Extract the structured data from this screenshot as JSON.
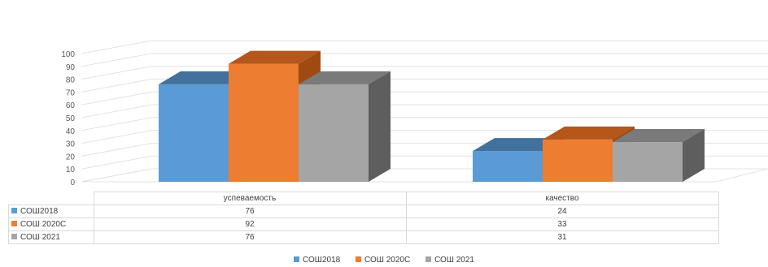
{
  "chart_data": {
    "type": "bar",
    "style": "3d-clustered-column",
    "categories": [
      "успеваемость",
      "качество"
    ],
    "series": [
      {
        "name": "СОШ2018",
        "values": [
          76,
          24
        ],
        "color": "#5b9bd5",
        "top": "#41719c",
        "side": "#2e5f8d"
      },
      {
        "name": "СОШ 2020С",
        "values": [
          92,
          33
        ],
        "color": "#ed7d31",
        "top": "#b5561b",
        "side": "#a04a12"
      },
      {
        "name": "СОШ 2021",
        "values": [
          76,
          31
        ],
        "color": "#a5a5a5",
        "top": "#7a7a7a",
        "side": "#5e5e5e"
      }
    ],
    "yticks": [
      "0",
      "10",
      "20",
      "30",
      "40",
      "50",
      "60",
      "70",
      "80",
      "90",
      "100"
    ],
    "ylim": [
      0,
      100
    ],
    "grid": true,
    "legend": "bottom",
    "data_table": true
  }
}
